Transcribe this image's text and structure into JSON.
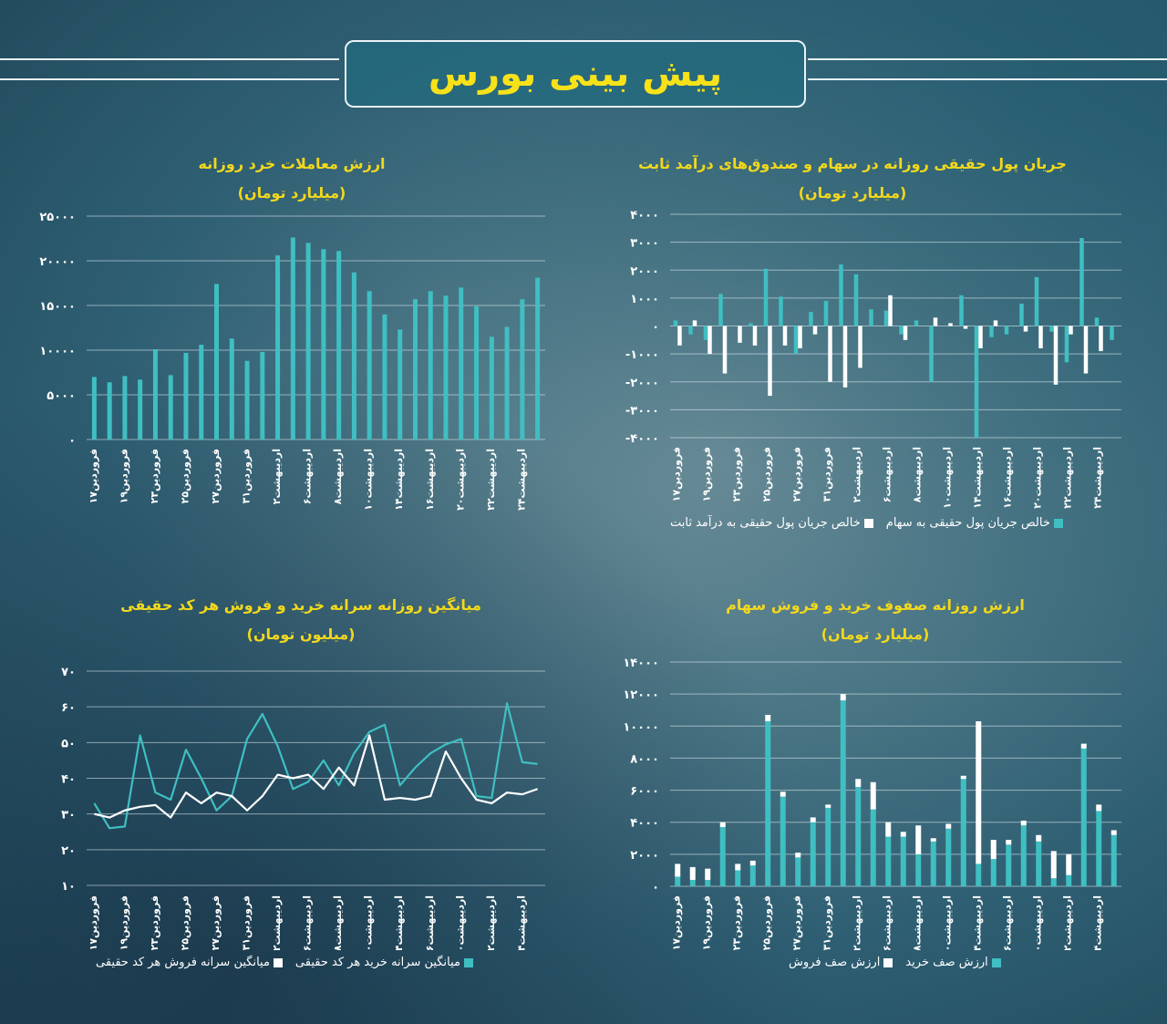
{
  "header": {
    "title": "پیش بینی بورس"
  },
  "colors": {
    "teal": "#3fbfc2",
    "white": "#ffffff",
    "title_yellow": "#f2d81c"
  },
  "panels": {
    "flow": {
      "title": "جریان پول حقیقی روزانه در سهام و صندوق‌های درآمد ثابت",
      "unit": "(میلیارد تومان)",
      "legend": [
        "خالص جریان پول حقیقی به سهام",
        "خالص جریان پول حقیقی به درآمد ثابت"
      ]
    },
    "retail": {
      "title": "ارزش معاملات خرد روزانه",
      "unit": "(میلیارد تومان)"
    },
    "queue": {
      "title": "ارزش روزانه صفوف خرید و فروش سهام",
      "unit": "(میلیارد تومان)",
      "legend": [
        "ارزش صف خرید",
        "ارزش صف فروش"
      ]
    },
    "avg": {
      "title": "میانگین روزانه سرانه خرید و فروش هر کد حقیقی",
      "unit": "(میلیون تومان)",
      "legend": [
        "میانگین سرانه خرید هر کد حقیقی",
        "میانگین سرانه فروش هر کد حقیقی"
      ]
    }
  },
  "chart_data": [
    {
      "type": "bar",
      "title": "جریان پول حقیقی روزانه در سهام و صندوق‌های درآمد ثابت",
      "ylabel": "(میلیارد تومان)",
      "ylim": [
        -4000,
        4000
      ],
      "yticks": [
        "۴۰۰۰",
        "۳۰۰۰",
        "۲۰۰۰",
        "۱۰۰۰",
        "۰",
        "-۱۰۰۰",
        "-۲۰۰۰",
        "-۳۰۰۰",
        "-۴۰۰۰"
      ],
      "xticks": [
        "فروردین۱۷",
        "فروردین۱۹",
        "فروردین۲۳",
        "فروردین۲۵",
        "فروردین۲۷",
        "فروردین۳۱",
        "اردیبهشت۲",
        "اردیبهشت۶",
        "اردیبهشت۸",
        "اردیبهشت۱۰",
        "اردیبهشت۱۴",
        "اردیبهشت۱۶",
        "اردیبهشت۲۰",
        "اردیبهشت۲۲",
        "اردیبهشت۲۴"
      ],
      "series": [
        {
          "name": "خالص جریان پول حقیقی به سهام",
          "values": [
            200,
            -300,
            -500,
            1150,
            0,
            100,
            2050,
            1050,
            -1000,
            500,
            900,
            2200,
            1850,
            600,
            550,
            -300,
            200,
            -2000,
            0,
            1100,
            -4000,
            -400,
            -300,
            800,
            1750,
            -200,
            -1300,
            3150,
            300,
            -500
          ]
        },
        {
          "name": "خالص جریان پول حقیقی به درآمد ثابت",
          "values": [
            -700,
            200,
            -1000,
            -1700,
            -600,
            -700,
            -2500,
            -700,
            -800,
            -300,
            -2000,
            -2200,
            -1500,
            0,
            1100,
            -500,
            0,
            300,
            100,
            -100,
            -800,
            200,
            0,
            -200,
            -800,
            -2100,
            -300,
            -1700,
            -900,
            0
          ]
        }
      ]
    },
    {
      "type": "bar",
      "title": "ارزش معاملات خرد روزانه",
      "ylabel": "(میلیارد تومان)",
      "ylim": [
        0,
        25000
      ],
      "yticks": [
        "۲۵۰۰۰",
        "۲۰۰۰۰",
        "۱۵۰۰۰",
        "۱۰۰۰۰",
        "۵۰۰۰",
        "۰"
      ],
      "xticks": [
        "فروردین۱۷",
        "فروردین۱۹",
        "فروردین۲۳",
        "فروردین۲۵",
        "فروردین۲۷",
        "فروردین۳۱",
        "اردیبهشت۲",
        "اردیبهشت۶",
        "اردیبهشت۸",
        "اردیبهشت۱۰",
        "اردیبهشت۱۴",
        "اردیبهشت۱۶",
        "اردیبهشت۲۰",
        "اردیبهشت۲۲",
        "اردیبهشت۲۴"
      ],
      "values": [
        7000,
        6400,
        7100,
        6700,
        10100,
        7200,
        9700,
        10600,
        17400,
        11300,
        8800,
        9800,
        20600,
        22600,
        22000,
        21300,
        21100,
        18700,
        16600,
        14000,
        12300,
        15700,
        16600,
        16100,
        17000,
        14900,
        11500,
        12600,
        15700,
        18100
      ]
    },
    {
      "type": "bar",
      "title": "ارزش روزانه صفوف خرید و فروش سهام",
      "ylabel": "(میلیارد تومان)",
      "ylim": [
        0,
        14000
      ],
      "yticks": [
        "۱۴۰۰۰",
        "۱۲۰۰۰",
        "۱۰۰۰۰",
        "۸۰۰۰",
        "۶۰۰۰",
        "۴۰۰۰",
        "۲۰۰۰",
        "۰"
      ],
      "xticks": [
        "فروردین۱۷",
        "فروردین۱۹",
        "فروردین۲۳",
        "فروردین۲۵",
        "فروردین۲۷",
        "فروردین۳۱",
        "اردیبهشت۲",
        "اردیبهشت۶",
        "اردیبهشت۸",
        "اردیبهشت۱۰",
        "اردیبهشت۱۴",
        "اردیبهشت۱۶",
        "اردیبهشت۲۰",
        "اردیبهشت۲۲",
        "اردیبهشت۲۴"
      ],
      "series": [
        {
          "name": "ارزش صف خرید",
          "values": [
            600,
            400,
            400,
            3700,
            1000,
            1300,
            10300,
            5600,
            1800,
            4000,
            4900,
            11600,
            6200,
            4800,
            3100,
            3100,
            2000,
            2800,
            3600,
            6700,
            1400,
            1700,
            2600,
            3800,
            2800,
            500,
            700,
            8600,
            4700,
            3200
          ]
        },
        {
          "name": "ارزش صف فروش",
          "values": [
            800,
            800,
            700,
            300,
            400,
            300,
            400,
            300,
            300,
            300,
            200,
            400,
            500,
            1700,
            900,
            300,
            1800,
            200,
            300,
            200,
            8900,
            1200,
            300,
            300,
            400,
            1700,
            1300,
            300,
            400,
            300
          ]
        }
      ]
    },
    {
      "type": "line",
      "title": "میانگین روزانه سرانه خرید و فروش هر کد حقیقی",
      "ylabel": "(میلیون تومان)",
      "ylim": [
        10,
        70
      ],
      "yticks": [
        "۷۰",
        "۶۰",
        "۵۰",
        "۴۰",
        "۳۰",
        "۲۰",
        "۱۰"
      ],
      "xticks": [
        "فروردین۱۷",
        "فروردین۱۹",
        "فروردین۲۳",
        "فروردین۲۵",
        "فروردین۲۷",
        "فروردین۳۱",
        "اردیبهشت۲",
        "اردیبهشت۶",
        "اردیبهشت۸",
        "اردیبهشت۱۰",
        "اردیبهشت۱۴",
        "اردیبهشت۱۶",
        "اردیبهشت۲۰",
        "اردیبهشت۲۲",
        "اردیبهشت۲۴"
      ],
      "series": [
        {
          "name": "میانگین سرانه خرید هر کد حقیقی",
          "values": [
            33,
            26,
            26.5,
            52,
            36,
            34,
            48,
            40,
            31,
            35,
            51,
            58,
            49,
            37,
            39,
            45,
            38,
            47,
            53,
            55,
            38,
            43,
            47,
            49.5,
            51,
            35,
            34.5,
            61,
            44.5,
            44
          ]
        },
        {
          "name": "میانگین سرانه فروش هر کد حقیقی",
          "values": [
            30,
            29,
            31,
            32,
            32.5,
            29,
            36,
            33,
            36,
            35,
            31,
            35,
            41,
            40,
            41,
            37,
            43,
            38,
            52,
            34,
            34.5,
            34,
            35,
            47.5,
            40,
            34,
            33,
            36,
            35.5,
            37
          ]
        }
      ]
    }
  ]
}
